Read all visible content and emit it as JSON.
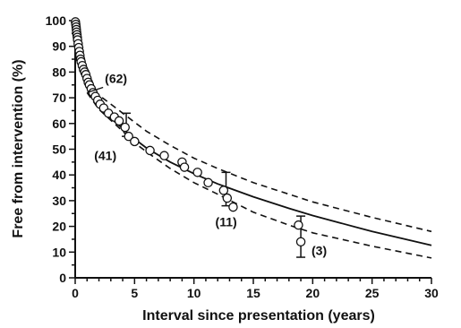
{
  "chart_data": {
    "type": "line",
    "title": "",
    "xlabel": "Interval since presentation (years)",
    "ylabel": "Free from intervention (%)",
    "xlim": [
      0,
      30
    ],
    "ylim": [
      0,
      100
    ],
    "x_ticks": [
      0,
      5,
      10,
      15,
      20,
      25,
      30
    ],
    "y_ticks": [
      0,
      10,
      20,
      30,
      40,
      50,
      60,
      70,
      80,
      90,
      100
    ],
    "x_minor_step": 1,
    "y_minor_step": 5,
    "grid": false,
    "series": [
      {
        "style": "solid",
        "points": [
          [
            0,
            100
          ],
          [
            0.3,
            88
          ],
          [
            0.7,
            81
          ],
          [
            1,
            76
          ],
          [
            1.5,
            72
          ],
          [
            2,
            68
          ],
          [
            3,
            62
          ],
          [
            4,
            58
          ],
          [
            5,
            54
          ],
          [
            6,
            50.5
          ],
          [
            8,
            45
          ],
          [
            10,
            40.5
          ],
          [
            12,
            36.5
          ],
          [
            15,
            31.5
          ],
          [
            18,
            27
          ],
          [
            20,
            24.2
          ],
          [
            25,
            18
          ],
          [
            30,
            12.6
          ]
        ]
      },
      {
        "style": "dashed",
        "points": [
          [
            1,
            76
          ],
          [
            2,
            71
          ],
          [
            4,
            64
          ],
          [
            5,
            60.5
          ],
          [
            6,
            57
          ],
          [
            8,
            51.5
          ],
          [
            10,
            46.5
          ],
          [
            12,
            42.5
          ],
          [
            15,
            37
          ],
          [
            18,
            32.5
          ],
          [
            20,
            29.5
          ],
          [
            25,
            23.5
          ],
          [
            30,
            18
          ]
        ]
      },
      {
        "style": "dashed",
        "points": [
          [
            1,
            72
          ],
          [
            2,
            65.5
          ],
          [
            4,
            57
          ],
          [
            5,
            52.5
          ],
          [
            6,
            49
          ],
          [
            8,
            42.5
          ],
          [
            10,
            37
          ],
          [
            12,
            32.5
          ],
          [
            15,
            25.5
          ],
          [
            18,
            20.5
          ],
          [
            20,
            17.5
          ],
          [
            25,
            12.3
          ],
          [
            30,
            7.7
          ]
        ]
      }
    ],
    "observed_points": [
      [
        0.02,
        99.5
      ],
      [
        0.05,
        98.5
      ],
      [
        0.08,
        97.5
      ],
      [
        0.1,
        96.5
      ],
      [
        0.12,
        95.5
      ],
      [
        0.15,
        94.5
      ],
      [
        0.18,
        93.5
      ],
      [
        0.2,
        92.5
      ],
      [
        0.25,
        91
      ],
      [
        0.3,
        89.5
      ],
      [
        0.35,
        88
      ],
      [
        0.4,
        86.5
      ],
      [
        0.45,
        85
      ],
      [
        0.5,
        84
      ],
      [
        0.6,
        82.5
      ],
      [
        0.7,
        81
      ],
      [
        0.8,
        80
      ],
      [
        0.9,
        79
      ],
      [
        1.0,
        77.5
      ],
      [
        1.1,
        76
      ],
      [
        1.2,
        75
      ],
      [
        1.35,
        73.5
      ],
      [
        1.5,
        72
      ],
      [
        1.7,
        70.5
      ],
      [
        1.9,
        69
      ],
      [
        2.1,
        67.5
      ],
      [
        2.4,
        66
      ],
      [
        2.8,
        64
      ],
      [
        3.3,
        62.5
      ],
      [
        3.7,
        61
      ],
      [
        4.2,
        58.5
      ],
      [
        4.5,
        55
      ],
      [
        5.0,
        53
      ],
      [
        6.3,
        49.5
      ],
      [
        7.5,
        47.5
      ],
      [
        9.0,
        45
      ],
      [
        9.2,
        43
      ],
      [
        10.3,
        41
      ],
      [
        11.2,
        37
      ],
      [
        12.5,
        34
      ],
      [
        12.8,
        31
      ],
      [
        13.3,
        27.5
      ],
      [
        18.8,
        20.5
      ],
      [
        19.0,
        14
      ]
    ],
    "error_bars": [
      {
        "x": 4.3,
        "low": 55,
        "high": 64
      },
      {
        "x": 12.7,
        "low": 28,
        "high": 41
      },
      {
        "x": 19.0,
        "low": 8,
        "high": 24
      }
    ],
    "annotations": [
      {
        "text": "(62)",
        "x": 2.5,
        "y": 75.8,
        "leader_to": [
          1.0,
          72
        ]
      },
      {
        "text": "(41)",
        "x": 1.6,
        "y": 45.8
      },
      {
        "text": "(11)",
        "x": 11.8,
        "y": 20.0
      },
      {
        "text": "(3)",
        "x": 19.9,
        "y": 8.8
      }
    ]
  }
}
